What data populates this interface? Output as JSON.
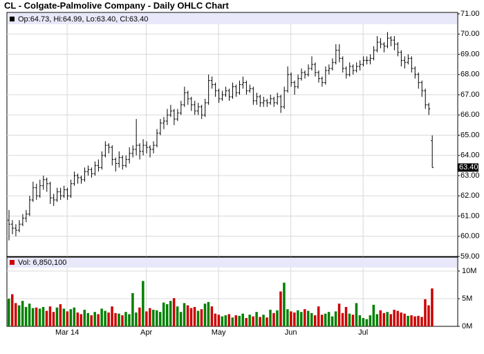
{
  "chart_data": {
    "type": "ohlc",
    "title": "CL - Colgate-Palmolive Company - Daily OHLC Chart",
    "price_legend": "Op:64.73, Hi:64.99, Lo:63.40, Cl:63.40",
    "volume_legend": "Vol: 6,850,100",
    "last_price_label": "63.40",
    "bar_color": "#000000",
    "up_color": "#008000",
    "down_color": "#cc0000",
    "grid": true,
    "xlim": [
      -0.5,
      130.5
    ],
    "xticks": [
      {
        "value": 17,
        "label": "Mar 14"
      },
      {
        "value": 40,
        "label": "Apr"
      },
      {
        "value": 61,
        "label": "May"
      },
      {
        "value": 82,
        "label": "Jun"
      },
      {
        "value": 103,
        "label": "Jul"
      }
    ],
    "ylim": [
      59,
      71.07
    ],
    "yticks": [
      {
        "value": 59,
        "label": "59.00"
      },
      {
        "value": 60,
        "label": "60.00"
      },
      {
        "value": 61,
        "label": "61.00"
      },
      {
        "value": 62,
        "label": "62.00"
      },
      {
        "value": 63,
        "label": "63.00"
      },
      {
        "value": 64,
        "label": "64.00"
      },
      {
        "value": 65,
        "label": "65.00"
      },
      {
        "value": 66,
        "label": "66.00"
      },
      {
        "value": 67,
        "label": "67.00"
      },
      {
        "value": 68,
        "label": "68.00"
      },
      {
        "value": 69,
        "label": "69.00"
      },
      {
        "value": 70,
        "label": "70.00"
      },
      {
        "value": 71,
        "label": "71.00"
      }
    ],
    "volume_ylim": [
      0,
      12.5
    ],
    "volume_yticks": [
      {
        "value": 0,
        "label": "0M"
      },
      {
        "value": 5,
        "label": "5M"
      },
      {
        "value": 10,
        "label": "10M"
      }
    ],
    "ohlc": [
      [
        60.8,
        61.3,
        59.8,
        60.6
      ],
      [
        60.6,
        60.8,
        60.1,
        60.4
      ],
      [
        60.4,
        60.6,
        60.0,
        60.3
      ],
      [
        60.3,
        60.8,
        60.2,
        60.6
      ],
      [
        60.6,
        61.1,
        60.5,
        60.9
      ],
      [
        60.9,
        61.3,
        60.7,
        61.1
      ],
      [
        61.1,
        62.0,
        61.0,
        61.8
      ],
      [
        61.8,
        62.7,
        61.7,
        62.4
      ],
      [
        62.4,
        62.6,
        61.8,
        62.0
      ],
      [
        62.0,
        62.8,
        61.9,
        62.5
      ],
      [
        62.5,
        63.0,
        62.3,
        62.8
      ],
      [
        62.8,
        62.9,
        62.2,
        62.6
      ],
      [
        62.6,
        62.7,
        61.6,
        61.9
      ],
      [
        61.9,
        62.1,
        61.5,
        61.8
      ],
      [
        61.8,
        62.4,
        61.7,
        62.2
      ],
      [
        62.2,
        62.4,
        61.8,
        62.0
      ],
      [
        62.0,
        62.5,
        61.9,
        62.3
      ],
      [
        62.3,
        62.4,
        61.8,
        62.0
      ],
      [
        62.0,
        62.8,
        61.9,
        62.6
      ],
      [
        62.6,
        63.2,
        62.5,
        63.0
      ],
      [
        63.0,
        63.1,
        62.6,
        62.9
      ],
      [
        62.9,
        63.0,
        62.6,
        62.8
      ],
      [
        62.8,
        63.4,
        62.7,
        63.2
      ],
      [
        63.2,
        63.5,
        63.0,
        63.3
      ],
      [
        63.3,
        63.4,
        62.9,
        63.1
      ],
      [
        63.1,
        63.7,
        63.0,
        63.5
      ],
      [
        63.5,
        63.8,
        63.2,
        63.4
      ],
      [
        63.4,
        64.2,
        63.3,
        64.0
      ],
      [
        64.0,
        64.7,
        63.9,
        64.5
      ],
      [
        64.5,
        64.6,
        64.1,
        64.4
      ],
      [
        64.4,
        64.5,
        63.5,
        63.8
      ],
      [
        63.8,
        63.9,
        63.2,
        63.6
      ],
      [
        63.6,
        64.2,
        63.4,
        63.9
      ],
      [
        63.9,
        64.0,
        63.3,
        63.5
      ],
      [
        63.5,
        64.0,
        63.4,
        63.8
      ],
      [
        63.8,
        64.4,
        63.6,
        64.1
      ],
      [
        64.1,
        64.5,
        63.9,
        64.3
      ],
      [
        64.3,
        65.8,
        64.0,
        64.5
      ],
      [
        64.5,
        64.6,
        63.8,
        64.2
      ],
      [
        64.2,
        64.8,
        64.0,
        64.5
      ],
      [
        64.5,
        64.7,
        64.1,
        64.4
      ],
      [
        64.4,
        64.5,
        63.9,
        64.3
      ],
      [
        64.3,
        64.7,
        64.1,
        64.5
      ],
      [
        64.5,
        65.3,
        64.4,
        65.1
      ],
      [
        65.1,
        65.8,
        65.0,
        65.6
      ],
      [
        65.6,
        65.9,
        65.3,
        65.7
      ],
      [
        65.7,
        66.3,
        65.5,
        66.0
      ],
      [
        66.0,
        66.5,
        65.9,
        66.2
      ],
      [
        66.2,
        66.3,
        65.5,
        65.8
      ],
      [
        65.8,
        66.3,
        65.7,
        66.1
      ],
      [
        66.1,
        66.7,
        66.0,
        66.5
      ],
      [
        66.5,
        67.4,
        66.4,
        67.1
      ],
      [
        67.1,
        67.2,
        66.5,
        66.8
      ],
      [
        66.8,
        66.9,
        66.2,
        66.5
      ],
      [
        66.5,
        66.7,
        66.0,
        66.2
      ],
      [
        66.2,
        66.6,
        66.0,
        66.4
      ],
      [
        66.4,
        66.5,
        65.8,
        66.0
      ],
      [
        66.0,
        66.8,
        65.9,
        66.6
      ],
      [
        66.6,
        68.0,
        66.5,
        67.7
      ],
      [
        67.7,
        67.9,
        67.3,
        67.5
      ],
      [
        67.5,
        67.6,
        66.9,
        67.2
      ],
      [
        67.2,
        67.3,
        66.6,
        66.8
      ],
      [
        66.8,
        67.2,
        66.7,
        67.0
      ],
      [
        67.0,
        67.4,
        66.9,
        67.2
      ],
      [
        67.2,
        67.3,
        66.7,
        66.9
      ],
      [
        66.9,
        67.6,
        66.8,
        67.4
      ],
      [
        67.4,
        67.5,
        66.9,
        67.1
      ],
      [
        67.1,
        67.7,
        67.0,
        67.5
      ],
      [
        67.5,
        67.9,
        67.3,
        67.6
      ],
      [
        67.6,
        67.7,
        67.0,
        67.2
      ],
      [
        67.2,
        67.5,
        67.1,
        67.3
      ],
      [
        67.3,
        67.4,
        66.5,
        66.7
      ],
      [
        66.7,
        67.1,
        66.5,
        66.9
      ],
      [
        66.9,
        67.0,
        66.4,
        66.6
      ],
      [
        66.6,
        66.9,
        66.4,
        66.7
      ],
      [
        66.7,
        66.8,
        66.4,
        66.6
      ],
      [
        66.6,
        67.0,
        66.5,
        66.8
      ],
      [
        66.8,
        66.9,
        66.4,
        66.6
      ],
      [
        66.6,
        67.1,
        66.5,
        66.9
      ],
      [
        66.9,
        67.0,
        66.1,
        66.4
      ],
      [
        66.4,
        67.4,
        66.3,
        67.2
      ],
      [
        67.2,
        68.4,
        67.1,
        68.0
      ],
      [
        68.0,
        68.1,
        67.4,
        67.6
      ],
      [
        67.6,
        67.7,
        67.0,
        67.4
      ],
      [
        67.4,
        68.0,
        67.3,
        67.8
      ],
      [
        67.8,
        68.3,
        67.7,
        68.1
      ],
      [
        68.1,
        68.2,
        67.8,
        68.0
      ],
      [
        68.0,
        68.5,
        67.9,
        68.3
      ],
      [
        68.3,
        68.9,
        68.2,
        68.5
      ],
      [
        68.5,
        68.6,
        67.9,
        68.1
      ],
      [
        68.1,
        68.2,
        67.6,
        67.8
      ],
      [
        67.8,
        67.9,
        67.4,
        67.6
      ],
      [
        67.6,
        68.4,
        67.5,
        68.2
      ],
      [
        68.2,
        68.5,
        68.0,
        68.3
      ],
      [
        68.3,
        68.8,
        68.2,
        68.6
      ],
      [
        68.6,
        69.5,
        68.5,
        69.2
      ],
      [
        69.2,
        69.5,
        68.6,
        68.8
      ],
      [
        68.8,
        68.9,
        68.1,
        68.3
      ],
      [
        68.3,
        68.4,
        67.8,
        68.0
      ],
      [
        68.0,
        68.6,
        67.9,
        68.4
      ],
      [
        68.4,
        68.5,
        68.0,
        68.2
      ],
      [
        68.2,
        68.6,
        68.1,
        68.4
      ],
      [
        68.4,
        68.7,
        68.2,
        68.5
      ],
      [
        68.5,
        68.9,
        68.4,
        68.7
      ],
      [
        68.7,
        68.9,
        68.5,
        68.7
      ],
      [
        68.7,
        69.0,
        68.5,
        68.8
      ],
      [
        68.8,
        69.4,
        68.7,
        69.2
      ],
      [
        69.2,
        69.9,
        69.1,
        69.6
      ],
      [
        69.6,
        69.8,
        69.3,
        69.5
      ],
      [
        69.5,
        69.6,
        69.1,
        69.4
      ],
      [
        69.4,
        70.1,
        69.3,
        69.8
      ],
      [
        69.8,
        69.9,
        69.4,
        69.7
      ],
      [
        69.7,
        69.9,
        69.2,
        69.5
      ],
      [
        69.5,
        69.6,
        68.9,
        69.1
      ],
      [
        69.1,
        69.2,
        68.4,
        68.7
      ],
      [
        68.7,
        68.9,
        68.3,
        68.6
      ],
      [
        68.6,
        69.0,
        68.5,
        68.8
      ],
      [
        68.8,
        68.9,
        68.1,
        68.3
      ],
      [
        68.3,
        68.4,
        67.8,
        68.0
      ],
      [
        68.0,
        68.1,
        67.3,
        67.6
      ],
      [
        67.6,
        67.7,
        66.9,
        67.2
      ],
      [
        67.2,
        67.3,
        66.3,
        66.5
      ],
      [
        66.5,
        66.6,
        66.0,
        66.3
      ],
      [
        64.73,
        64.99,
        63.4,
        63.4
      ]
    ],
    "volume": [
      5.0,
      5.8,
      4.2,
      3.8,
      4.6,
      3.5,
      4.1,
      3.3,
      3.4,
      3.2,
      3.5,
      2.8,
      3.6,
      2.6,
      3.4,
      4.0,
      3.2,
      2.7,
      3.1,
      3.4,
      2.5,
      2.2,
      3.0,
      2.4,
      2.0,
      2.6,
      2.2,
      3.2,
      2.8,
      2.5,
      3.6,
      2.4,
      2.3,
      2.0,
      2.6,
      2.2,
      6.0,
      2.5,
      3.4,
      8.2,
      2.7,
      3.3,
      3.0,
      2.9,
      2.6,
      4.3,
      4.0,
      4.6,
      5.1,
      3.6,
      2.6,
      4.2,
      3.8,
      3.3,
      3.5,
      2.8,
      3.1,
      4.1,
      4.4,
      3.6,
      2.3,
      2.1,
      1.8,
      2.0,
      2.2,
      1.6,
      2.0,
      1.9,
      2.3,
      1.5,
      2.1,
      1.8,
      2.6,
      1.7,
      2.1,
      1.6,
      3.0,
      2.4,
      2.9,
      6.3,
      7.9,
      3.1,
      2.7,
      2.5,
      2.9,
      2.6,
      3.1,
      2.8,
      2.4,
      2.0,
      3.6,
      2.1,
      2.3,
      2.6,
      1.8,
      2.7,
      4.1,
      2.4,
      3.5,
      2.3,
      2.1,
      4.2,
      2.0,
      1.5,
      1.3,
      2.0,
      3.9,
      2.2,
      2.9,
      2.4,
      2.6,
      2.2,
      3.0,
      2.8,
      2.5,
      2.3,
      1.9,
      2.0,
      1.8,
      1.9,
      1.7,
      4.9,
      3.8,
      6.8501
    ]
  }
}
